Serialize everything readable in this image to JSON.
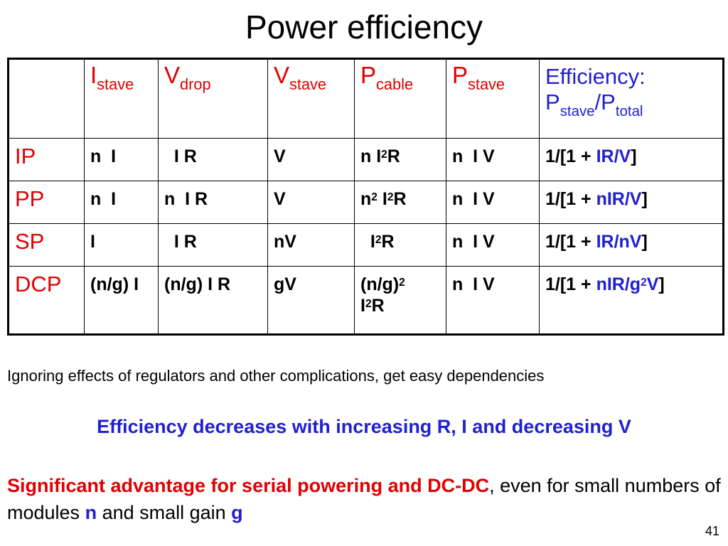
{
  "title": "Power efficiency",
  "header": {
    "I": "I",
    "I_sub": "stave",
    "Vd": "V",
    "Vd_sub": "drop",
    "Vs": "V",
    "Vs_sub": "stave",
    "Pc": "P",
    "Pc_sub": "cable",
    "Ps": "P",
    "Ps_sub": "stave",
    "eff_label": "Efficiency:",
    "eff_P1": "P",
    "eff_P1_sub": "stave",
    "eff_slash": "/P",
    "eff_P2_sub": "total"
  },
  "rows": {
    "ip": {
      "label": "IP",
      "istave": "n  I",
      "vdrop": "  I R",
      "vstave": "V",
      "pcable_a": "n I",
      "pcable_sup": "2",
      "pcable_b": "R",
      "pstave": "n  I V",
      "eff_pre": "1/[1 + ",
      "eff_blue": "IR/V",
      "eff_post": "]"
    },
    "pp": {
      "label": "PP",
      "istave": "n  I",
      "vdrop": "n  I R",
      "vstave": "V",
      "pcable_a": "n",
      "pcable_sup1": "2",
      "pcable_b": " I",
      "pcable_sup2": "2",
      "pcable_c": "R",
      "pstave": "n  I V",
      "eff_pre": "1/[1 + ",
      "eff_blue": "nIR/V",
      "eff_post": "]"
    },
    "sp": {
      "label": "SP",
      "istave": "I",
      "vdrop": "  I R",
      "vstave": "nV",
      "pcable_a": "  I",
      "pcable_sup": "2",
      "pcable_b": "R",
      "pstave": "n  I V",
      "eff_pre": "1/[1 + ",
      "eff_blue": "IR/nV",
      "eff_post": "]"
    },
    "dcp": {
      "label": "DCP",
      "istave": "(n/g) I",
      "vdrop": "(n/g)  I R",
      "vstave": "gV",
      "pcable_a": "(n/g)",
      "pcable_sup1": "2",
      "pcable_b": "I",
      "pcable_sup2": "2",
      "pcable_c": "R",
      "pstave": "n  I V",
      "eff_pre": "1/[1 + ",
      "eff_blue": "nIR/g",
      "eff_blue_sup": "2",
      "eff_blue2": "V",
      "eff_post": "]"
    }
  },
  "notes": {
    "n1": "Ignoring effects of regulators and other complications, get easy dependencies",
    "n2": "Efficiency decreases with increasing R, I and decreasing V",
    "n3_red": "Significant advantage for serial powering and DC-DC",
    "n3_a": ", even for small numbers of modules ",
    "n3_n": "n",
    "n3_b": " and small gain ",
    "n3_g": "g"
  },
  "page_number": "41"
}
